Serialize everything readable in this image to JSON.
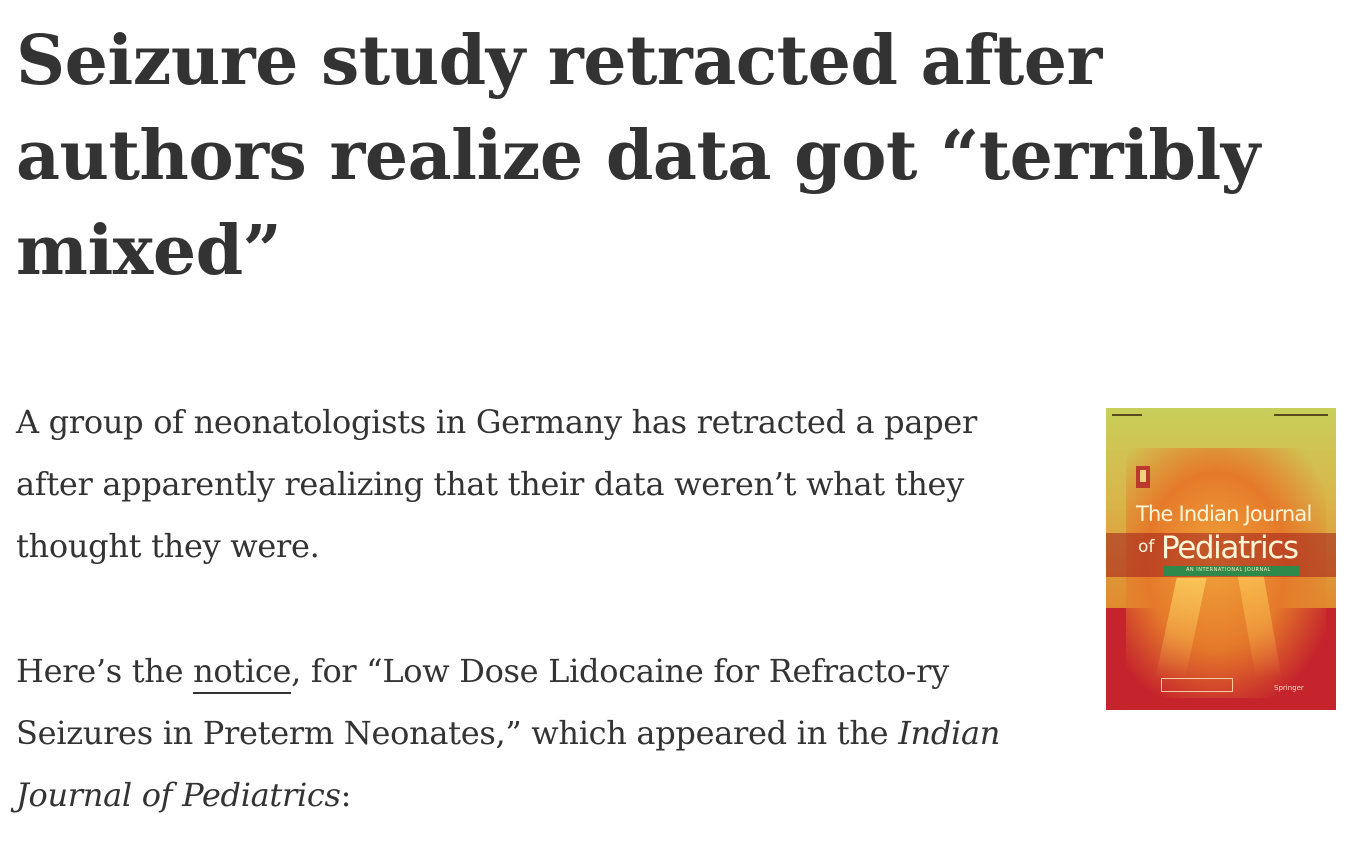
{
  "article": {
    "headline": "Seizure study retracted after authors realize data got “terribly mixed”",
    "paragraph1": "A group of neonatologists in Germany has retracted a paper after apparently realizing that their data weren’t what they thought they were.",
    "paragraph2": {
      "prefix": "Here’s the ",
      "link_text": "notice",
      "middle": ", for “Low Dose Lidocaine for Refracto-ry Seizures in Preterm Neonates,” which appeared in the ",
      "journal": "Indian Journal of Pediatrics",
      "suffix": ":"
    }
  },
  "cover_image": {
    "title_line1": "The Indian Journal",
    "title_of": "of",
    "title_line2": "Pediatrics",
    "subtitle": "AN INTERNATIONAL JOURNAL",
    "publisher": "Springer",
    "colors": {
      "top": "#c8cf5a",
      "middle": "#e57a2a",
      "bottom": "#c5242c",
      "band": "#2e8a4a"
    }
  },
  "colors": {
    "text": "#333333",
    "background": "#ffffff"
  }
}
